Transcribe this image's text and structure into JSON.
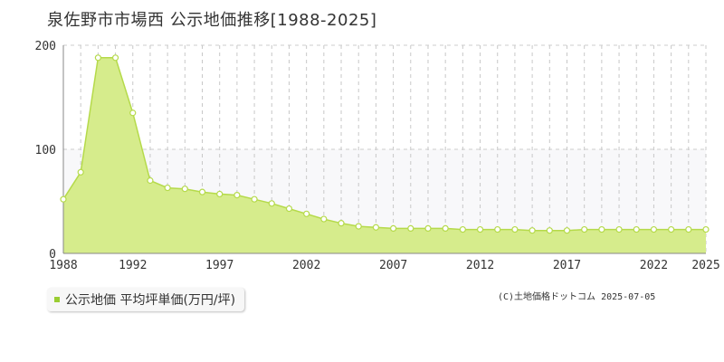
{
  "title": "泉佐野市市場西 公示地価推移[1988-2025]",
  "credit": "(C)土地価格ドットコム 2025-07-05",
  "legend_label": "公示地価 平均坪単価(万円/坪)",
  "colors": {
    "fill": "#d6ec8c",
    "line": "#b5da4a",
    "band": "#f8f8fa",
    "marker": "#9acd32"
  },
  "chart_data": {
    "type": "area",
    "title": "泉佐野市市場西 公示地価推移[1988-2025]",
    "xlabel": "",
    "ylabel": "",
    "xlim": [
      1988,
      2025
    ],
    "ylim": [
      0,
      200
    ],
    "yticks": [
      0,
      100,
      200
    ],
    "xticks": [
      1988,
      1992,
      1997,
      2002,
      2007,
      2012,
      2017,
      2022,
      2025
    ],
    "grid": true,
    "legend": "bottom-left",
    "series": [
      {
        "name": "公示地価 平均坪単価(万円/坪)",
        "x": [
          1988,
          1989,
          1990,
          1991,
          1992,
          1993,
          1994,
          1995,
          1996,
          1997,
          1998,
          1999,
          2000,
          2001,
          2002,
          2003,
          2004,
          2005,
          2006,
          2007,
          2008,
          2009,
          2010,
          2011,
          2012,
          2013,
          2014,
          2015,
          2016,
          2017,
          2018,
          2019,
          2020,
          2021,
          2022,
          2023,
          2024,
          2025
        ],
        "y": [
          52,
          78,
          188,
          188,
          135,
          70,
          63,
          62,
          59,
          57,
          56,
          52,
          48,
          43,
          38,
          33,
          29,
          26,
          25,
          24,
          24,
          24,
          24,
          23,
          23,
          23,
          23,
          22,
          22,
          22,
          23,
          23,
          23,
          23,
          23,
          23,
          23,
          23
        ]
      }
    ]
  }
}
